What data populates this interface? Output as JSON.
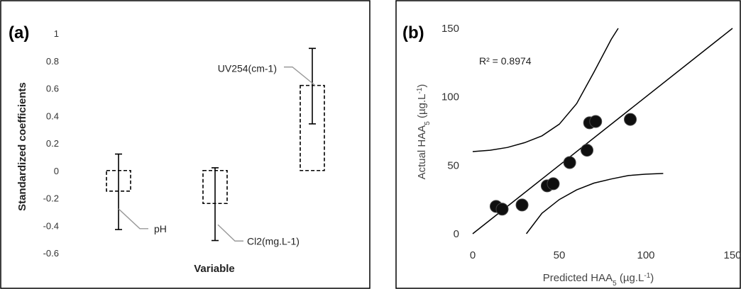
{
  "chart_data": [
    {
      "type": "bar",
      "panel_label": "(a)",
      "xlabel": "Variable",
      "ylabel": "Standardized coefficients",
      "ylim": [
        -0.7,
        1
      ],
      "yticks": [
        "1",
        "0.8",
        "0.6",
        "0.4",
        "0.2",
        "0",
        "-0.2",
        "-0.4",
        "-0.6"
      ],
      "yticks_values": [
        1,
        0.8,
        0.6,
        0.4,
        0.2,
        0,
        -0.2,
        -0.4,
        -0.6
      ],
      "categories": [
        "pH",
        "Cl2(mg.L-1)",
        "UV254(cm-1)"
      ],
      "values": [
        -0.15,
        -0.24,
        0.62
      ],
      "error_low": [
        -0.43,
        -0.51,
        0.34
      ],
      "error_high": [
        0.12,
        0.02,
        0.89
      ],
      "bar_style": "dashed-outline",
      "grid": false
    },
    {
      "type": "scatter",
      "panel_label": "(b)",
      "xlabel": "Predicted HAA",
      "xlabel_sub": "5",
      "xlabel_unit_pre": " (µg.L",
      "xlabel_unit_sup": "-1",
      "xlabel_unit_post": ")",
      "ylabel": "Actual HAA",
      "ylabel_sub": "5",
      "ylabel_unit_pre": " (µg.L",
      "ylabel_unit_sup": "-1",
      "ylabel_unit_post": ")",
      "xlim": [
        0,
        150
      ],
      "ylim": [
        0,
        150
      ],
      "xticks": [
        "0",
        "50",
        "100",
        "150"
      ],
      "xticks_values": [
        0,
        50,
        100,
        150
      ],
      "yticks": [
        "150",
        "100",
        "50",
        "0"
      ],
      "yticks_values": [
        150,
        100,
        50,
        0
      ],
      "r2_text": "R² = 0.8974",
      "points": [
        {
          "x": 13.5,
          "y": 20
        },
        {
          "x": 17,
          "y": 18
        },
        {
          "x": 28.5,
          "y": 21
        },
        {
          "x": 43,
          "y": 35
        },
        {
          "x": 46.5,
          "y": 36.5
        },
        {
          "x": 56,
          "y": 52
        },
        {
          "x": 66,
          "y": 61
        },
        {
          "x": 67.5,
          "y": 81
        },
        {
          "x": 71,
          "y": 82
        },
        {
          "x": 91,
          "y": 83.5
        }
      ],
      "fit_line": [
        {
          "x": 0,
          "y": 0
        },
        {
          "x": 150,
          "y": 150
        }
      ],
      "upper_band": [
        {
          "x": 0,
          "y": 60
        },
        {
          "x": 10,
          "y": 61
        },
        {
          "x": 20,
          "y": 63
        },
        {
          "x": 30,
          "y": 66.5
        },
        {
          "x": 40,
          "y": 71.5
        },
        {
          "x": 50,
          "y": 80
        },
        {
          "x": 60,
          "y": 95
        },
        {
          "x": 70,
          "y": 118
        },
        {
          "x": 80,
          "y": 142
        },
        {
          "x": 84,
          "y": 152
        }
      ],
      "lower_band": [
        {
          "x": 31,
          "y": 0
        },
        {
          "x": 40,
          "y": 15
        },
        {
          "x": 50,
          "y": 25
        },
        {
          "x": 60,
          "y": 32
        },
        {
          "x": 70,
          "y": 37
        },
        {
          "x": 80,
          "y": 40
        },
        {
          "x": 90,
          "y": 42.5
        },
        {
          "x": 100,
          "y": 43.5
        },
        {
          "x": 110,
          "y": 44
        }
      ],
      "grid": false
    }
  ]
}
